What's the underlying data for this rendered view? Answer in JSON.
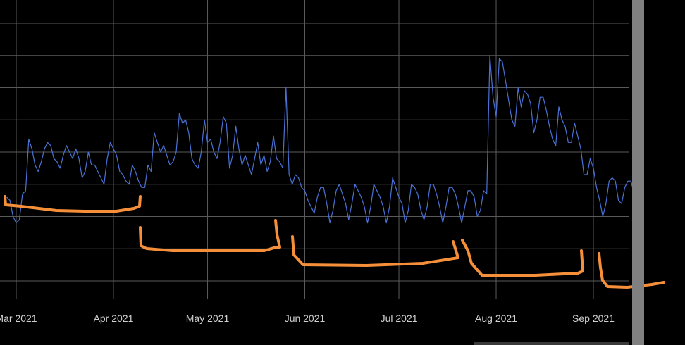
{
  "colors": {
    "background": "#000000",
    "series": "#4a72d6",
    "annotation": "#f58f3a",
    "grid": "#5a5a5a",
    "scrollbar": "#808080"
  },
  "chart_data": {
    "type": "line",
    "title": "",
    "xlabel": "",
    "ylabel": "",
    "grid": true,
    "legend": "none",
    "xlim": [
      "2021-02-26",
      "2021-09-20"
    ],
    "ylim": [
      0,
      8
    ],
    "x_ticks": [
      "2021-03-01",
      "2021-04-01",
      "2021-05-01",
      "2021-06-01",
      "2021-07-01",
      "2021-08-01",
      "2021-09-01"
    ],
    "x_tick_labels": [
      "Mar 2021",
      "Apr 2021",
      "May 2021",
      "Jun 2021",
      "Jul 2021",
      "Aug 2021",
      "Sep 2021"
    ],
    "x_start": "2021-02-26",
    "series": [
      {
        "color": "#4a72d6",
        "values": [
          2.6,
          2.5,
          2.0,
          1.8,
          1.9,
          2.7,
          2.8,
          4.4,
          4.1,
          3.6,
          3.4,
          3.7,
          4.1,
          4.3,
          4.2,
          3.8,
          3.7,
          3.5,
          3.9,
          4.2,
          4.0,
          3.8,
          4.1,
          3.8,
          3.2,
          3.4,
          4.0,
          3.6,
          3.6,
          3.4,
          3.2,
          3.0,
          3.8,
          4.3,
          4.1,
          3.9,
          3.4,
          3.3,
          3.1,
          3.0,
          3.6,
          3.4,
          3.1,
          2.9,
          2.9,
          3.6,
          3.4,
          4.6,
          4.3,
          4.0,
          4.2,
          3.9,
          3.6,
          3.7,
          4.0,
          5.2,
          4.9,
          5.0,
          4.6,
          3.8,
          3.6,
          3.5,
          4.0,
          5.0,
          4.3,
          4.4,
          4.0,
          3.8,
          4.3,
          5.1,
          4.9,
          3.5,
          3.9,
          4.8,
          4.1,
          3.6,
          3.9,
          3.6,
          3.3,
          3.8,
          4.3,
          3.6,
          3.9,
          3.4,
          3.7,
          4.5,
          3.8,
          3.7,
          3.5,
          6.0,
          3.3,
          3.0,
          3.3,
          3.2,
          2.9,
          2.8,
          2.5,
          2.3,
          2.1,
          2.6,
          2.9,
          2.9,
          2.4,
          1.8,
          2.2,
          2.8,
          3.0,
          2.7,
          2.4,
          1.9,
          2.4,
          3.0,
          2.8,
          2.6,
          2.3,
          1.8,
          2.3,
          3.0,
          2.8,
          2.6,
          2.3,
          1.8,
          2.3,
          3.2,
          2.9,
          2.6,
          2.4,
          1.8,
          2.2,
          3.0,
          2.9,
          2.7,
          2.2,
          1.9,
          2.3,
          3.0,
          3.0,
          2.7,
          2.3,
          1.8,
          2.3,
          2.9,
          2.9,
          2.7,
          2.3,
          1.8,
          2.3,
          2.8,
          2.8,
          2.6,
          2.0,
          2.2,
          2.8,
          2.7,
          7.0,
          5.7,
          5.1,
          6.9,
          6.8,
          6.2,
          5.6,
          5.0,
          4.8,
          6.0,
          5.4,
          5.9,
          5.8,
          5.5,
          4.6,
          5.0,
          5.7,
          5.7,
          5.3,
          4.8,
          4.4,
          4.2,
          5.4,
          5.0,
          4.8,
          4.3,
          4.3,
          4.9,
          4.5,
          4.1,
          3.3,
          3.3,
          3.8,
          3.5,
          2.9,
          2.5,
          2.0,
          2.4,
          3.1,
          3.2,
          3.1,
          2.5,
          2.4,
          2.9,
          3.1,
          3.1,
          2.7,
          2.6,
          2.4,
          2.8
        ]
      }
    ]
  }
}
